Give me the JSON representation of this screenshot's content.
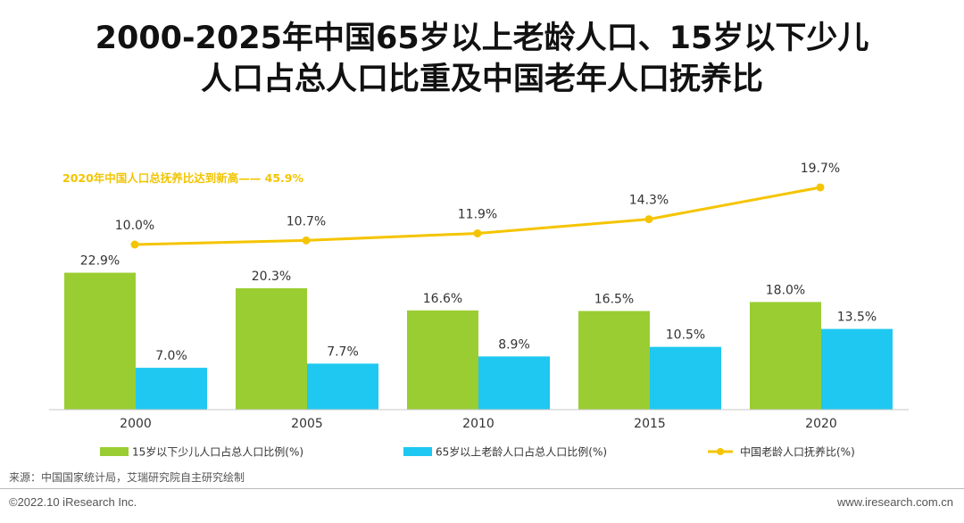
{
  "title": {
    "line1": "2000-2025年中国65岁以上老龄人口、15岁以下少儿",
    "line2": "人口占总人口比重及中国老年人口抚养比"
  },
  "colors": {
    "green": "#9ACD32",
    "blue": "#1EC8F0",
    "yellow": "#F5C400"
  },
  "chart_data": {
    "type": "bar",
    "categories": [
      "2000",
      "2005",
      "2010",
      "2015",
      "2020"
    ],
    "series": [
      {
        "name": "15岁以下少儿人口占总人口比例(%)",
        "kind": "bar",
        "values": [
          22.9,
          20.3,
          16.6,
          16.5,
          18.0
        ],
        "labels": [
          "22.9%",
          "20.3%",
          "16.6%",
          "16.5%",
          "18.0%"
        ]
      },
      {
        "name": "65岁以上老龄人口占总人口比例(%)",
        "kind": "bar",
        "values": [
          7.0,
          7.7,
          8.9,
          10.5,
          13.5
        ],
        "labels": [
          "7.0%",
          "7.7%",
          "8.9%",
          "10.5%",
          "13.5%"
        ]
      },
      {
        "name": "中国老龄人口抚养比(%)",
        "kind": "line",
        "values": [
          10.0,
          10.7,
          11.9,
          14.3,
          19.7
        ],
        "labels": [
          "10.0%",
          "10.7%",
          "11.9%",
          "14.3%",
          "19.7%"
        ]
      }
    ],
    "annotation": "2020年中国人口总抚养比达到新高—— 45.9%",
    "bar_ylim": [
      0,
      25
    ],
    "line_ylim": [
      0,
      25
    ]
  },
  "source": "来源：中国国家统计局，艾瑞研究院自主研究绘制",
  "footer": {
    "copyright": "©2022.10 iResearch Inc.",
    "website": "www.iresearch.com.cn"
  }
}
